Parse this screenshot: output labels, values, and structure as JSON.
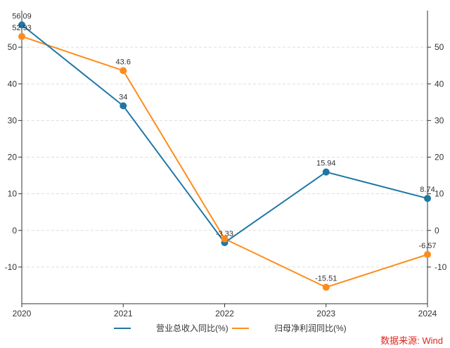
{
  "chart_data": {
    "type": "line",
    "title": "",
    "xlabel": "",
    "ylabel": "",
    "categories": [
      "2020",
      "2021",
      "2022",
      "2023",
      "2024"
    ],
    "ylim": [
      -20,
      60
    ],
    "yticks": [
      -10,
      0,
      10,
      20,
      30,
      40,
      50
    ],
    "grid": true,
    "legend_placement": "bottom",
    "series": [
      {
        "name": "营业总收入同比(%)",
        "color": "#1f77a4",
        "values": [
          56.09,
          34,
          -3.33,
          15.94,
          8.74
        ],
        "labels": [
          "56.09",
          "34",
          "-3.33",
          "15.94",
          "8.74"
        ]
      },
      {
        "name": "归母净利润同比(%)",
        "color": "#ff8c1a",
        "values": [
          52.93,
          43.6,
          -2.3,
          -15.51,
          -6.57
        ],
        "labels": [
          "52.93",
          "43.6",
          "",
          "-15.51",
          "-6.57"
        ]
      }
    ]
  },
  "source": "数据来源: Wind"
}
